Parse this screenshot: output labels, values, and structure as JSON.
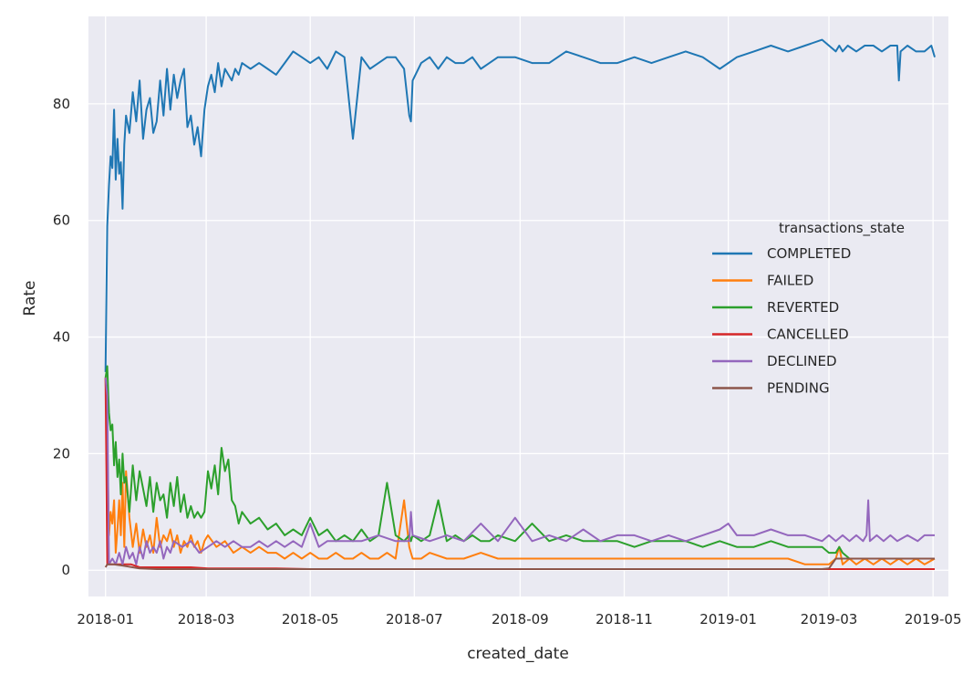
{
  "chart_data": {
    "type": "line",
    "xlabel": "created_date",
    "ylabel": "Rate",
    "xlim": [
      -10,
      494
    ],
    "ylim": [
      -4.5,
      95
    ],
    "x_ticks": [
      {
        "day": 0,
        "label": "2018-01"
      },
      {
        "day": 59,
        "label": "2018-03"
      },
      {
        "day": 120,
        "label": "2018-05"
      },
      {
        "day": 181,
        "label": "2018-07"
      },
      {
        "day": 243,
        "label": "2018-09"
      },
      {
        "day": 304,
        "label": "2018-11"
      },
      {
        "day": 365,
        "label": "2019-01"
      },
      {
        "day": 424,
        "label": "2019-03"
      },
      {
        "day": 485,
        "label": "2019-05"
      }
    ],
    "y_ticks": [
      0,
      20,
      40,
      60,
      80
    ],
    "legend": {
      "title": "transactions_state",
      "position": "center-right"
    },
    "series": [
      {
        "name": "COMPLETED",
        "color": "#1f77b4",
        "x": [
          0,
          1,
          2,
          3,
          4,
          5,
          6,
          7,
          8,
          9,
          10,
          11,
          12,
          14,
          16,
          18,
          20,
          22,
          24,
          26,
          28,
          30,
          32,
          34,
          36,
          38,
          40,
          42,
          44,
          46,
          48,
          50,
          52,
          54,
          56,
          58,
          60,
          62,
          64,
          66,
          68,
          70,
          72,
          74,
          76,
          78,
          80,
          85,
          90,
          95,
          100,
          105,
          110,
          115,
          120,
          125,
          130,
          135,
          140,
          145,
          150,
          155,
          160,
          165,
          170,
          175,
          178,
          179,
          180,
          185,
          190,
          195,
          200,
          205,
          210,
          215,
          220,
          225,
          230,
          240,
          250,
          260,
          270,
          280,
          290,
          300,
          310,
          320,
          330,
          340,
          350,
          360,
          370,
          380,
          390,
          400,
          410,
          420,
          424,
          428,
          430,
          432,
          435,
          440,
          445,
          450,
          455,
          460,
          464,
          465,
          466,
          470,
          475,
          480,
          484,
          486
        ],
        "y": [
          34,
          59,
          66,
          71,
          69,
          79,
          67,
          74,
          68,
          70,
          62,
          73,
          78,
          75,
          82,
          77,
          84,
          74,
          79,
          81,
          75,
          77,
          84,
          78,
          86,
          79,
          85,
          81,
          84,
          86,
          76,
          78,
          73,
          76,
          71,
          79,
          83,
          85,
          82,
          87,
          83,
          86,
          85,
          84,
          86,
          85,
          87,
          86,
          87,
          86,
          85,
          87,
          89,
          88,
          87,
          88,
          86,
          89,
          88,
          74,
          88,
          86,
          87,
          88,
          88,
          86,
          78,
          77,
          84,
          87,
          88,
          86,
          88,
          87,
          87,
          88,
          86,
          87,
          88,
          88,
          87,
          87,
          89,
          88,
          87,
          87,
          88,
          87,
          88,
          89,
          88,
          86,
          88,
          89,
          90,
          89,
          90,
          91,
          90,
          89,
          90,
          89,
          90,
          89,
          90,
          90,
          89,
          90,
          90,
          84,
          89,
          90,
          89,
          89,
          90,
          88
        ]
      },
      {
        "name": "FAILED",
        "color": "#ff7f0e",
        "x": [
          0,
          1,
          2,
          3,
          4,
          5,
          6,
          7,
          8,
          9,
          10,
          11,
          12,
          14,
          16,
          18,
          20,
          22,
          24,
          26,
          28,
          30,
          32,
          34,
          36,
          38,
          40,
          42,
          44,
          46,
          48,
          50,
          52,
          54,
          56,
          58,
          60,
          65,
          70,
          75,
          80,
          85,
          90,
          95,
          100,
          105,
          110,
          115,
          120,
          125,
          130,
          135,
          140,
          145,
          150,
          155,
          160,
          165,
          170,
          175,
          178,
          179,
          180,
          185,
          190,
          200,
          210,
          220,
          230,
          240,
          250,
          260,
          270,
          280,
          290,
          300,
          310,
          320,
          330,
          340,
          350,
          360,
          370,
          380,
          390,
          400,
          410,
          420,
          424,
          428,
          430,
          432,
          436,
          440,
          445,
          450,
          455,
          460,
          465,
          470,
          475,
          480,
          486
        ],
        "y": [
          33,
          22,
          6,
          10,
          8,
          12,
          3,
          7,
          12,
          6,
          15,
          4,
          17,
          9,
          4,
          8,
          3,
          7,
          4,
          6,
          3,
          9,
          4,
          6,
          5,
          7,
          4,
          6,
          3,
          5,
          4,
          6,
          4,
          5,
          3,
          5,
          6,
          4,
          5,
          3,
          4,
          3,
          4,
          3,
          3,
          2,
          3,
          2,
          3,
          2,
          2,
          3,
          2,
          2,
          3,
          2,
          2,
          3,
          2,
          12,
          4,
          3,
          2,
          2,
          3,
          2,
          2,
          3,
          2,
          2,
          2,
          2,
          2,
          2,
          2,
          2,
          2,
          2,
          2,
          2,
          2,
          2,
          2,
          2,
          2,
          2,
          1,
          1,
          1,
          2,
          4,
          1,
          2,
          1,
          2,
          1,
          2,
          1,
          2,
          1,
          2,
          1,
          2
        ]
      },
      {
        "name": "REVERTED",
        "color": "#2ca02c",
        "x": [
          0,
          1,
          2,
          3,
          4,
          5,
          6,
          7,
          8,
          9,
          10,
          11,
          12,
          14,
          16,
          18,
          20,
          22,
          24,
          26,
          28,
          30,
          32,
          34,
          36,
          38,
          40,
          42,
          44,
          46,
          48,
          50,
          52,
          54,
          56,
          58,
          60,
          62,
          64,
          66,
          68,
          70,
          72,
          74,
          76,
          78,
          80,
          85,
          90,
          95,
          100,
          105,
          110,
          115,
          120,
          125,
          130,
          135,
          140,
          145,
          150,
          155,
          160,
          165,
          170,
          175,
          178,
          179,
          180,
          185,
          190,
          195,
          200,
          205,
          210,
          215,
          220,
          225,
          230,
          240,
          250,
          260,
          270,
          280,
          290,
          300,
          310,
          320,
          330,
          340,
          350,
          360,
          370,
          380,
          390,
          400,
          410,
          420,
          424,
          428,
          430,
          432,
          436,
          440,
          445,
          450,
          455,
          460,
          465,
          470,
          475,
          480,
          486
        ],
        "y": [
          33,
          35,
          27,
          24,
          25,
          18,
          22,
          16,
          19,
          13,
          20,
          15,
          16,
          10,
          18,
          12,
          17,
          14,
          11,
          16,
          10,
          15,
          12,
          13,
          9,
          15,
          11,
          16,
          10,
          13,
          9,
          11,
          9,
          10,
          9,
          10,
          17,
          14,
          18,
          13,
          21,
          17,
          19,
          12,
          11,
          8,
          10,
          8,
          9,
          7,
          8,
          6,
          7,
          6,
          9,
          6,
          7,
          5,
          6,
          5,
          7,
          5,
          6,
          15,
          6,
          5,
          6,
          5,
          6,
          5,
          6,
          12,
          5,
          6,
          5,
          6,
          5,
          5,
          6,
          5,
          8,
          5,
          6,
          5,
          5,
          5,
          4,
          5,
          5,
          5,
          4,
          5,
          4,
          4,
          5,
          4,
          4,
          4,
          3,
          3,
          4,
          3,
          2,
          2,
          2,
          2,
          2,
          2,
          2,
          2,
          2,
          2,
          2
        ]
      },
      {
        "name": "CANCELLED",
        "color": "#d62728",
        "x": [
          0,
          1,
          5,
          10,
          15,
          20,
          30,
          40,
          50,
          60,
          70,
          80,
          90,
          100,
          120,
          150,
          180,
          200,
          250,
          300,
          350,
          400,
          420,
          424,
          428,
          440,
          460,
          480,
          486
        ],
        "y": [
          33,
          1,
          1,
          1,
          1,
          0.5,
          0.5,
          0.5,
          0.5,
          0.3,
          0.3,
          0.3,
          0.3,
          0.3,
          0.2,
          0.2,
          0.2,
          0.2,
          0.2,
          0.2,
          0.2,
          0.2,
          0.2,
          0.2,
          0.2,
          0.2,
          0.2,
          0.2,
          0.2
        ]
      },
      {
        "name": "DECLINED",
        "color": "#9467bd",
        "x": [
          0,
          1,
          2,
          4,
          6,
          8,
          10,
          12,
          14,
          16,
          18,
          20,
          22,
          24,
          26,
          28,
          30,
          32,
          34,
          36,
          38,
          40,
          45,
          50,
          55,
          60,
          65,
          70,
          75,
          80,
          85,
          90,
          95,
          100,
          105,
          110,
          115,
          120,
          125,
          130,
          140,
          150,
          160,
          170,
          178,
          179,
          180,
          190,
          200,
          210,
          220,
          230,
          240,
          250,
          260,
          270,
          280,
          290,
          300,
          310,
          320,
          330,
          340,
          350,
          360,
          365,
          370,
          380,
          390,
          400,
          410,
          420,
          424,
          428,
          432,
          436,
          440,
          444,
          446,
          447,
          448,
          452,
          456,
          460,
          464,
          470,
          476,
          480,
          486
        ],
        "y": [
          33,
          30,
          1,
          2,
          1,
          3,
          1,
          4,
          2,
          3,
          1,
          4,
          2,
          5,
          3,
          4,
          3,
          5,
          2,
          4,
          3,
          5,
          4,
          5,
          3,
          4,
          5,
          4,
          5,
          4,
          4,
          5,
          4,
          5,
          4,
          5,
          4,
          8,
          4,
          5,
          5,
          5,
          6,
          5,
          5,
          10,
          6,
          5,
          6,
          5,
          8,
          5,
          9,
          5,
          6,
          5,
          7,
          5,
          6,
          6,
          5,
          6,
          5,
          6,
          7,
          8,
          6,
          6,
          7,
          6,
          6,
          5,
          6,
          5,
          6,
          5,
          6,
          5,
          6,
          12,
          5,
          6,
          5,
          6,
          5,
          6,
          5,
          6,
          6
        ]
      },
      {
        "name": "PENDING",
        "color": "#8c564b",
        "x": [
          0,
          1,
          5,
          10,
          20,
          30,
          60,
          90,
          120,
          150,
          180,
          240,
          300,
          360,
          420,
          424,
          428,
          430,
          440,
          450,
          460,
          470,
          480,
          486
        ],
        "y": [
          0.5,
          1,
          1,
          0.8,
          0.3,
          0.2,
          0.2,
          0.2,
          0.2,
          0.2,
          0.2,
          0.2,
          0.2,
          0.2,
          0.2,
          0.3,
          2,
          2,
          2,
          2,
          2,
          2,
          2,
          2
        ]
      }
    ]
  }
}
